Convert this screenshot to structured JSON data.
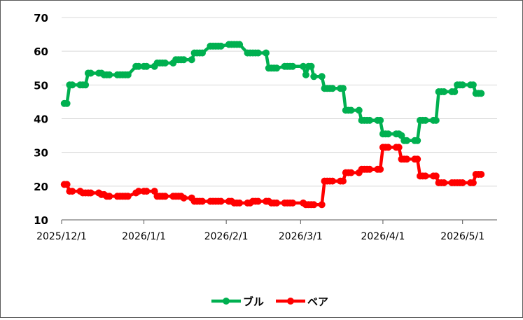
{
  "chart_data": {
    "type": "line",
    "title": "",
    "xlabel": "",
    "ylabel": "",
    "ylim": [
      10,
      70
    ],
    "yticks": [
      10,
      20,
      30,
      40,
      50,
      60,
      70
    ],
    "xlim": [
      "2025-12-01",
      "2026-05-14"
    ],
    "xticks": [
      "2025/12/1",
      "2026/1/1",
      "2026/2/1",
      "2026/3/1",
      "2026/4/1",
      "2026/5/1"
    ],
    "xtick_dates": [
      "2025-12-01",
      "2026-01-01",
      "2026-02-01",
      "2026-03-01",
      "2026-04-01",
      "2026-05-01"
    ],
    "grid": "horizontal",
    "legend": "bottom",
    "series": [
      {
        "name": "ブル",
        "color": "#00B050",
        "points": [
          [
            "2025-12-02",
            44.5
          ],
          [
            "2025-12-03",
            44.5
          ],
          [
            "2025-12-04",
            50.0
          ],
          [
            "2025-12-05",
            50.0
          ],
          [
            "2025-12-08",
            50.0
          ],
          [
            "2025-12-09",
            50.0
          ],
          [
            "2025-12-10",
            50.0
          ],
          [
            "2025-12-11",
            53.5
          ],
          [
            "2025-12-12",
            53.5
          ],
          [
            "2025-12-15",
            53.5
          ],
          [
            "2025-12-16",
            53.5
          ],
          [
            "2025-12-17",
            53.0
          ],
          [
            "2025-12-18",
            53.0
          ],
          [
            "2025-12-19",
            53.0
          ],
          [
            "2025-12-22",
            53.0
          ],
          [
            "2025-12-23",
            53.0
          ],
          [
            "2025-12-24",
            53.0
          ],
          [
            "2025-12-25",
            53.0
          ],
          [
            "2025-12-26",
            53.0
          ],
          [
            "2025-12-29",
            55.5
          ],
          [
            "2025-12-30",
            55.5
          ],
          [
            "2026-01-01",
            55.5
          ],
          [
            "2026-01-02",
            55.5
          ],
          [
            "2026-01-05",
            55.5
          ],
          [
            "2026-01-06",
            56.5
          ],
          [
            "2026-01-07",
            56.5
          ],
          [
            "2026-01-08",
            56.5
          ],
          [
            "2026-01-09",
            56.5
          ],
          [
            "2026-01-12",
            56.5
          ],
          [
            "2026-01-13",
            57.5
          ],
          [
            "2026-01-14",
            57.5
          ],
          [
            "2026-01-15",
            57.5
          ],
          [
            "2026-01-16",
            57.5
          ],
          [
            "2026-01-19",
            57.5
          ],
          [
            "2026-01-20",
            59.5
          ],
          [
            "2026-01-21",
            59.5
          ],
          [
            "2026-01-22",
            59.5
          ],
          [
            "2026-01-23",
            59.5
          ],
          [
            "2026-01-26",
            61.5
          ],
          [
            "2026-01-27",
            61.5
          ],
          [
            "2026-01-28",
            61.5
          ],
          [
            "2026-01-29",
            61.5
          ],
          [
            "2026-01-30",
            61.5
          ],
          [
            "2026-02-02",
            62.0
          ],
          [
            "2026-02-03",
            62.0
          ],
          [
            "2026-02-04",
            62.0
          ],
          [
            "2026-02-05",
            62.0
          ],
          [
            "2026-02-06",
            62.0
          ],
          [
            "2026-02-09",
            59.5
          ],
          [
            "2026-02-10",
            59.5
          ],
          [
            "2026-02-11",
            59.5
          ],
          [
            "2026-02-12",
            59.5
          ],
          [
            "2026-02-13",
            59.5
          ],
          [
            "2026-02-16",
            59.5
          ],
          [
            "2026-02-17",
            55.0
          ],
          [
            "2026-02-18",
            55.0
          ],
          [
            "2026-02-19",
            55.0
          ],
          [
            "2026-02-20",
            55.0
          ],
          [
            "2026-02-23",
            55.5
          ],
          [
            "2026-02-24",
            55.5
          ],
          [
            "2026-02-25",
            55.5
          ],
          [
            "2026-02-26",
            55.5
          ],
          [
            "2026-03-02",
            55.5
          ],
          [
            "2026-03-03",
            53.0
          ],
          [
            "2026-03-04",
            55.5
          ],
          [
            "2026-03-05",
            55.5
          ],
          [
            "2026-03-06",
            52.5
          ],
          [
            "2026-03-09",
            52.5
          ],
          [
            "2026-03-10",
            49.0
          ],
          [
            "2026-03-11",
            49.0
          ],
          [
            "2026-03-12",
            49.0
          ],
          [
            "2026-03-13",
            49.0
          ],
          [
            "2026-03-16",
            49.0
          ],
          [
            "2026-03-17",
            49.0
          ],
          [
            "2026-03-18",
            42.5
          ],
          [
            "2026-03-19",
            42.5
          ],
          [
            "2026-03-20",
            42.5
          ],
          [
            "2026-03-23",
            42.5
          ],
          [
            "2026-03-24",
            39.5
          ],
          [
            "2026-03-25",
            39.5
          ],
          [
            "2026-03-26",
            39.5
          ],
          [
            "2026-03-27",
            39.5
          ],
          [
            "2026-03-30",
            39.5
          ],
          [
            "2026-03-31",
            39.5
          ],
          [
            "2026-04-01",
            35.5
          ],
          [
            "2026-04-02",
            35.5
          ],
          [
            "2026-04-03",
            35.5
          ],
          [
            "2026-04-06",
            35.5
          ],
          [
            "2026-04-07",
            35.5
          ],
          [
            "2026-04-08",
            35.0
          ],
          [
            "2026-04-09",
            33.5
          ],
          [
            "2026-04-10",
            33.5
          ],
          [
            "2026-04-13",
            33.5
          ],
          [
            "2026-04-14",
            33.5
          ],
          [
            "2026-04-15",
            39.5
          ],
          [
            "2026-04-16",
            39.5
          ],
          [
            "2026-04-17",
            39.5
          ],
          [
            "2026-04-20",
            39.5
          ],
          [
            "2026-04-21",
            39.5
          ],
          [
            "2026-04-22",
            48.0
          ],
          [
            "2026-04-23",
            48.0
          ],
          [
            "2026-04-24",
            48.0
          ],
          [
            "2026-04-27",
            48.0
          ],
          [
            "2026-04-28",
            48.0
          ],
          [
            "2026-04-29",
            50.0
          ],
          [
            "2026-04-30",
            50.0
          ],
          [
            "2026-05-01",
            50.0
          ],
          [
            "2026-05-04",
            50.0
          ],
          [
            "2026-05-05",
            50.0
          ],
          [
            "2026-05-06",
            47.5
          ],
          [
            "2026-05-07",
            47.5
          ],
          [
            "2026-05-08",
            47.5
          ]
        ]
      },
      {
        "name": "ベア",
        "color": "#FF0000",
        "points": [
          [
            "2025-12-02",
            20.5
          ],
          [
            "2025-12-03",
            20.5
          ],
          [
            "2025-12-04",
            18.5
          ],
          [
            "2025-12-05",
            18.5
          ],
          [
            "2025-12-08",
            18.5
          ],
          [
            "2025-12-09",
            18.0
          ],
          [
            "2025-12-10",
            18.0
          ],
          [
            "2025-12-11",
            18.0
          ],
          [
            "2025-12-12",
            18.0
          ],
          [
            "2025-12-15",
            18.0
          ],
          [
            "2025-12-16",
            17.5
          ],
          [
            "2025-12-17",
            17.5
          ],
          [
            "2025-12-18",
            17.0
          ],
          [
            "2025-12-19",
            17.0
          ],
          [
            "2025-12-22",
            17.0
          ],
          [
            "2025-12-23",
            17.0
          ],
          [
            "2025-12-24",
            17.0
          ],
          [
            "2025-12-25",
            17.0
          ],
          [
            "2025-12-26",
            17.0
          ],
          [
            "2025-12-29",
            18.0
          ],
          [
            "2025-12-30",
            18.5
          ],
          [
            "2026-01-01",
            18.5
          ],
          [
            "2026-01-02",
            18.5
          ],
          [
            "2026-01-05",
            18.5
          ],
          [
            "2026-01-06",
            17.0
          ],
          [
            "2026-01-07",
            17.0
          ],
          [
            "2026-01-08",
            17.0
          ],
          [
            "2026-01-09",
            17.0
          ],
          [
            "2026-01-12",
            17.0
          ],
          [
            "2026-01-13",
            17.0
          ],
          [
            "2026-01-14",
            17.0
          ],
          [
            "2026-01-15",
            17.0
          ],
          [
            "2026-01-16",
            16.5
          ],
          [
            "2026-01-19",
            16.5
          ],
          [
            "2026-01-20",
            15.5
          ],
          [
            "2026-01-21",
            15.5
          ],
          [
            "2026-01-22",
            15.5
          ],
          [
            "2026-01-23",
            15.5
          ],
          [
            "2026-01-26",
            15.5
          ],
          [
            "2026-01-27",
            15.5
          ],
          [
            "2026-01-28",
            15.5
          ],
          [
            "2026-01-29",
            15.5
          ],
          [
            "2026-01-30",
            15.5
          ],
          [
            "2026-02-02",
            15.5
          ],
          [
            "2026-02-03",
            15.5
          ],
          [
            "2026-02-04",
            15.0
          ],
          [
            "2026-02-05",
            15.0
          ],
          [
            "2026-02-06",
            15.0
          ],
          [
            "2026-02-09",
            15.0
          ],
          [
            "2026-02-10",
            15.0
          ],
          [
            "2026-02-11",
            15.5
          ],
          [
            "2026-02-12",
            15.5
          ],
          [
            "2026-02-13",
            15.5
          ],
          [
            "2026-02-16",
            15.5
          ],
          [
            "2026-02-17",
            15.5
          ],
          [
            "2026-02-18",
            15.0
          ],
          [
            "2026-02-19",
            15.0
          ],
          [
            "2026-02-20",
            15.0
          ],
          [
            "2026-02-23",
            15.0
          ],
          [
            "2026-02-24",
            15.0
          ],
          [
            "2026-02-25",
            15.0
          ],
          [
            "2026-02-26",
            15.0
          ],
          [
            "2026-03-02",
            15.0
          ],
          [
            "2026-03-03",
            14.5
          ],
          [
            "2026-03-04",
            14.5
          ],
          [
            "2026-03-05",
            14.5
          ],
          [
            "2026-03-06",
            14.5
          ],
          [
            "2026-03-09",
            14.5
          ],
          [
            "2026-03-10",
            21.5
          ],
          [
            "2026-03-11",
            21.5
          ],
          [
            "2026-03-12",
            21.5
          ],
          [
            "2026-03-13",
            21.5
          ],
          [
            "2026-03-16",
            21.5
          ],
          [
            "2026-03-17",
            21.5
          ],
          [
            "2026-03-18",
            24.0
          ],
          [
            "2026-03-19",
            24.0
          ],
          [
            "2026-03-20",
            24.0
          ],
          [
            "2026-03-23",
            24.0
          ],
          [
            "2026-03-24",
            25.0
          ],
          [
            "2026-03-25",
            25.0
          ],
          [
            "2026-03-26",
            25.0
          ],
          [
            "2026-03-27",
            25.0
          ],
          [
            "2026-03-30",
            25.0
          ],
          [
            "2026-03-31",
            25.0
          ],
          [
            "2026-04-01",
            31.5
          ],
          [
            "2026-04-02",
            31.5
          ],
          [
            "2026-04-03",
            31.5
          ],
          [
            "2026-04-06",
            31.5
          ],
          [
            "2026-04-07",
            31.5
          ],
          [
            "2026-04-08",
            28.0
          ],
          [
            "2026-04-09",
            28.0
          ],
          [
            "2026-04-10",
            28.0
          ],
          [
            "2026-04-13",
            28.0
          ],
          [
            "2026-04-14",
            28.0
          ],
          [
            "2026-04-15",
            23.0
          ],
          [
            "2026-04-16",
            23.0
          ],
          [
            "2026-04-17",
            23.0
          ],
          [
            "2026-04-20",
            23.0
          ],
          [
            "2026-04-21",
            23.0
          ],
          [
            "2026-04-22",
            21.0
          ],
          [
            "2026-04-23",
            21.0
          ],
          [
            "2026-04-24",
            21.0
          ],
          [
            "2026-04-27",
            21.0
          ],
          [
            "2026-04-28",
            21.0
          ],
          [
            "2026-04-29",
            21.0
          ],
          [
            "2026-04-30",
            21.0
          ],
          [
            "2026-05-01",
            21.0
          ],
          [
            "2026-05-04",
            21.0
          ],
          [
            "2026-05-05",
            21.0
          ],
          [
            "2026-05-06",
            23.5
          ],
          [
            "2026-05-07",
            23.5
          ],
          [
            "2026-05-08",
            23.5
          ]
        ]
      }
    ]
  }
}
